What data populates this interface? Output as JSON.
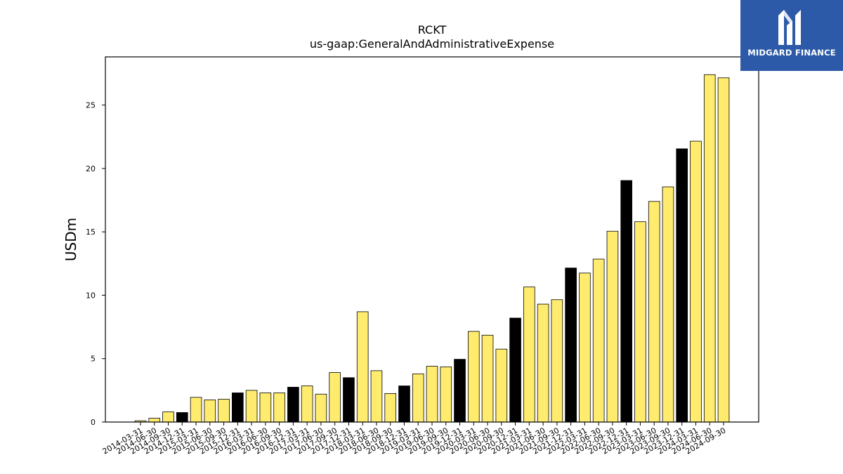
{
  "logo": {
    "text": "MIDGARD FINANCE",
    "icon": "midgard-m-logo-icon",
    "background": "#2c5aa8"
  },
  "chart_data": {
    "type": "bar",
    "title": "RCKT",
    "subtitle": "us-gaap:GeneralAndAdministrativeExpense",
    "xlabel": "",
    "ylabel": "USDm",
    "ylim": [
      0,
      28.8
    ],
    "yticks": [
      0,
      5,
      10,
      15,
      20,
      25
    ],
    "grid": false,
    "legend": "none",
    "colors": {
      "quarter": "#ffec6e",
      "fiscal_year_end": "#000000",
      "edge": "#000000"
    },
    "categories": [
      "2014-03-31",
      "2014-06-30",
      "2014-09-30",
      "2014-12-31",
      "2015-03-31",
      "2015-06-30",
      "2015-09-30",
      "2015-12-31",
      "2016-03-31",
      "2016-06-30",
      "2016-09-30",
      "2016-12-31",
      "2017-03-31",
      "2017-06-30",
      "2017-09-30",
      "2017-12-31",
      "2018-03-31",
      "2018-06-30",
      "2018-09-30",
      "2018-12-31",
      "2019-03-31",
      "2019-06-30",
      "2019-09-30",
      "2019-12-31",
      "2020-03-31",
      "2020-06-30",
      "2020-09-30",
      "2020-12-31",
      "2021-03-31",
      "2021-06-30",
      "2021-09-30",
      "2021-12-31",
      "2022-03-31",
      "2022-06-30",
      "2022-09-30",
      "2022-12-31",
      "2023-03-31",
      "2023-06-30",
      "2023-09-30",
      "2023-12-31",
      "2024-03-31",
      "2024-06-30",
      "2024-09-30"
    ],
    "values": [
      0.1,
      0.3,
      0.8,
      0.75,
      1.95,
      1.75,
      1.8,
      2.3,
      2.5,
      2.3,
      2.3,
      2.75,
      2.85,
      2.2,
      3.9,
      3.5,
      8.7,
      4.05,
      2.25,
      2.85,
      3.8,
      4.4,
      4.35,
      4.95,
      7.15,
      6.85,
      5.75,
      8.2,
      10.65,
      9.3,
      9.65,
      12.15,
      11.75,
      12.85,
      15.05,
      19.05,
      15.8,
      17.4,
      18.55,
      21.55,
      22.15,
      27.4,
      27.15
    ],
    "fiscal_year_end": [
      false,
      false,
      false,
      true,
      false,
      false,
      false,
      true,
      false,
      false,
      false,
      true,
      false,
      false,
      false,
      true,
      false,
      false,
      false,
      true,
      false,
      false,
      false,
      true,
      false,
      false,
      false,
      true,
      false,
      false,
      false,
      true,
      false,
      false,
      false,
      true,
      false,
      false,
      false,
      true,
      false,
      false,
      false
    ]
  }
}
